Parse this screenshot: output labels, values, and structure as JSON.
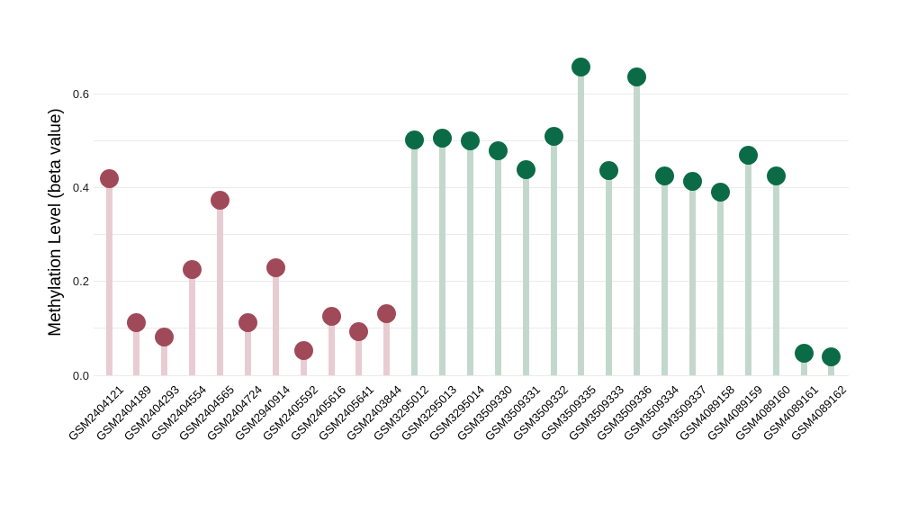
{
  "figure": {
    "background_color": "#ffffff",
    "text_color": "#000000",
    "gridline_color": "#ebebeb"
  },
  "chart_data": {
    "type": "lollipop",
    "title": "",
    "xlabel": "",
    "ylabel": "Methylation Level (beta value)",
    "ylim": [
      0,
      0.68
    ],
    "yticks": [
      "0.0",
      "0.2",
      "0.4",
      "0.6"
    ],
    "ytick_values": [
      0.0,
      0.2,
      0.4,
      0.6
    ],
    "minor_gridline_values": [
      0.0,
      0.1,
      0.2,
      0.3,
      0.4,
      0.5,
      0.6
    ],
    "grid": "horizontal-only",
    "legend": "none",
    "groups": [
      {
        "name": "red-group",
        "dot_color": "#a04a59",
        "stem_color": "#e9ccd3"
      },
      {
        "name": "green-group",
        "dot_color": "#0b6b46",
        "stem_color": "#c3d8cc"
      }
    ],
    "points": [
      {
        "sample": "GSM2404121",
        "value": 0.42,
        "group": 0
      },
      {
        "sample": "GSM2404189",
        "value": 0.112,
        "group": 0
      },
      {
        "sample": "GSM2404293",
        "value": 0.082,
        "group": 0
      },
      {
        "sample": "GSM2404554",
        "value": 0.225,
        "group": 0
      },
      {
        "sample": "GSM2404565",
        "value": 0.374,
        "group": 0
      },
      {
        "sample": "GSM2404724",
        "value": 0.113,
        "group": 0
      },
      {
        "sample": "GSM2940914",
        "value": 0.23,
        "group": 0
      },
      {
        "sample": "GSM2405592",
        "value": 0.052,
        "group": 0
      },
      {
        "sample": "GSM2405616",
        "value": 0.126,
        "group": 0
      },
      {
        "sample": "GSM2405641",
        "value": 0.093,
        "group": 0
      },
      {
        "sample": "GSM2403844",
        "value": 0.131,
        "group": 0
      },
      {
        "sample": "GSM3295012",
        "value": 0.501,
        "group": 1
      },
      {
        "sample": "GSM3295013",
        "value": 0.505,
        "group": 1
      },
      {
        "sample": "GSM3295014",
        "value": 0.5,
        "group": 1
      },
      {
        "sample": "GSM3509330",
        "value": 0.478,
        "group": 1
      },
      {
        "sample": "GSM3509331",
        "value": 0.438,
        "group": 1
      },
      {
        "sample": "GSM3509332",
        "value": 0.509,
        "group": 1
      },
      {
        "sample": "GSM3509335",
        "value": 0.657,
        "group": 1
      },
      {
        "sample": "GSM3509333",
        "value": 0.437,
        "group": 1
      },
      {
        "sample": "GSM3509336",
        "value": 0.636,
        "group": 1
      },
      {
        "sample": "GSM3509334",
        "value": 0.425,
        "group": 1
      },
      {
        "sample": "GSM3509337",
        "value": 0.414,
        "group": 1
      },
      {
        "sample": "GSM4089158",
        "value": 0.39,
        "group": 1
      },
      {
        "sample": "GSM4089159",
        "value": 0.469,
        "group": 1
      },
      {
        "sample": "GSM4089160",
        "value": 0.425,
        "group": 1
      },
      {
        "sample": "GSM4089161",
        "value": 0.047,
        "group": 1
      },
      {
        "sample": "GSM4089162",
        "value": 0.04,
        "group": 1
      }
    ]
  }
}
